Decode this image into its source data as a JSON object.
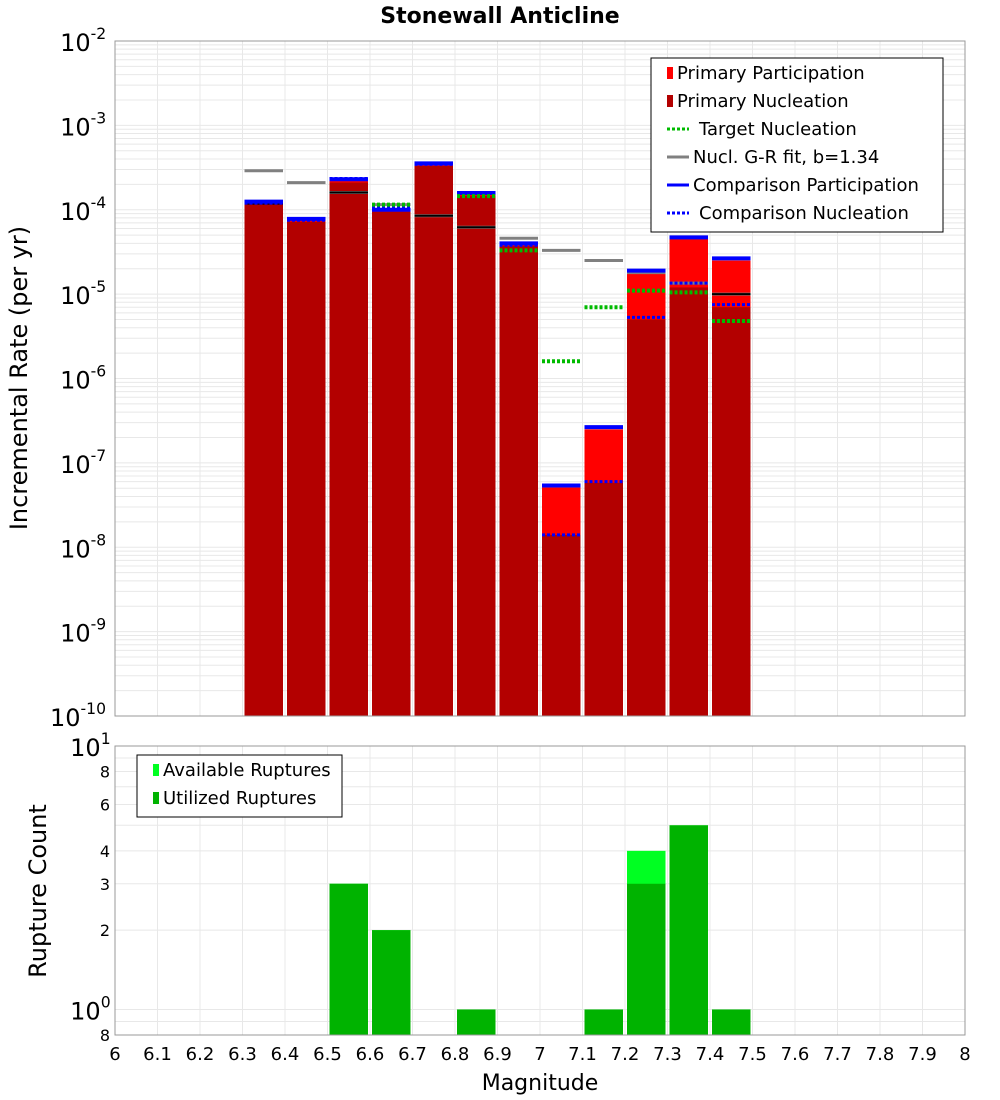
{
  "title": "Stonewall Anticline",
  "xlabel": "Magnitude",
  "colors": {
    "primary_participation": "#ff0000",
    "primary_nucleation": "#b30000",
    "target_nucleation": "#00bb00",
    "gr_fit": "#808080",
    "comparison": "#0000ff",
    "available": "#00ff22",
    "utilized": "#00b300",
    "grid": "#e8e8e8"
  },
  "x_ticks": [
    "6",
    "6.1",
    "6.2",
    "6.3",
    "6.4",
    "6.5",
    "6.6",
    "6.7",
    "6.8",
    "6.9",
    "7",
    "7.1",
    "7.2",
    "7.3",
    "7.4",
    "7.5",
    "7.6",
    "7.7",
    "7.8",
    "7.9",
    "8"
  ],
  "chart_data": [
    {
      "type": "bar",
      "ylabel": "Incremental Rate (per yr)",
      "y_scale": "log",
      "xlim": [
        6.0,
        8.0
      ],
      "ylim": [
        1e-10,
        0.01
      ],
      "y_ticks": [
        {
          "base": "10",
          "exp": "-10"
        },
        {
          "base": "10",
          "exp": "-9"
        },
        {
          "base": "10",
          "exp": "-8"
        },
        {
          "base": "10",
          "exp": "-7"
        },
        {
          "base": "10",
          "exp": "-6"
        },
        {
          "base": "10",
          "exp": "-5"
        },
        {
          "base": "10",
          "exp": "-4"
        },
        {
          "base": "10",
          "exp": "-3"
        },
        {
          "base": "10",
          "exp": "-2"
        }
      ],
      "legend": {
        "placement": "top-right",
        "entries": [
          {
            "label": "Primary Participation",
            "style": "box",
            "color": "#ff0000"
          },
          {
            "label": "Primary Nucleation",
            "style": "box",
            "color": "#b30000"
          },
          {
            "label": "Target Nucleation",
            "style": "dotted",
            "color": "#00bb00"
          },
          {
            "label": "Nucl. G-R fit, b=1.34",
            "style": "solid",
            "color": "#808080"
          },
          {
            "label": "Comparison Participation",
            "style": "solid",
            "color": "#0000ff"
          },
          {
            "label": "Comparison Nucleation",
            "style": "dotted",
            "color": "#0000ff"
          }
        ]
      },
      "magnitudes": [
        6.35,
        6.45,
        6.55,
        6.65,
        6.75,
        6.85,
        6.95,
        7.05,
        7.15,
        7.25,
        7.35,
        7.45
      ],
      "series": [
        {
          "name": "Primary Participation",
          "values": [
            0.00012,
            7.5e-05,
            0.00022,
            9.8e-05,
            0.00034,
            0.00015,
            3.9e-05,
            5.1e-08,
            2.5e-07,
            1.8e-05,
            4.5e-05,
            2.5e-05
          ]
        },
        {
          "name": "Primary Nucleation",
          "values": [
            0.000115,
            7.2e-05,
            0.00021,
            9.5e-05,
            0.00033,
            0.000145,
            3.7e-05,
            1.4e-08,
            5.8e-08,
            5e-06,
            1.2e-05,
            7e-06
          ]
        },
        {
          "name": "Target Nucleation",
          "values": [
            null,
            null,
            null,
            0.000115,
            null,
            0.000145,
            3.3e-05,
            1.6e-06,
            7e-06,
            1.1e-05,
            1.05e-05,
            4.8e-06
          ]
        },
        {
          "name": "Nucl. G-R fit, b=1.34",
          "values": [
            0.00029,
            0.00021,
            0.00016,
            0.000115,
            8.5e-05,
            6.2e-05,
            4.6e-05,
            3.3e-05,
            2.5e-05,
            1.8e-05,
            1.35e-05,
            1e-05
          ]
        },
        {
          "name": "Comparison Participation",
          "values": [
            0.000125,
            7.8e-05,
            0.00023,
            0.0001,
            0.000355,
            0.000158,
            4e-05,
            5.4e-08,
            2.65e-07,
            1.9e-05,
            4.7e-05,
            2.65e-05
          ]
        },
        {
          "name": "Comparison Nucleation",
          "values": [
            0.00012,
            7.5e-05,
            0.000235,
            0.000105,
            0.000345,
            0.00015,
            3.8e-05,
            1.4e-08,
            6e-08,
            5.3e-06,
            1.35e-05,
            7.5e-06
          ]
        }
      ],
      "fit_marks": [
        0.000118,
        null,
        0.00016,
        null,
        8.5e-05,
        6.2e-05,
        null,
        null,
        null,
        null,
        null,
        1e-05
      ]
    },
    {
      "type": "bar",
      "ylabel": "Rupture Count",
      "y_scale": "log",
      "xlim": [
        6.0,
        8.0
      ],
      "ylim": [
        0.8,
        10
      ],
      "y_ticks": [
        {
          "value": 0.8,
          "base": "8",
          "exp": ""
        },
        {
          "value": 1,
          "base": "10",
          "exp": "0"
        },
        {
          "value": 2,
          "base": "2",
          "exp": ""
        },
        {
          "value": 3,
          "base": "3",
          "exp": ""
        },
        {
          "value": 4,
          "base": "4",
          "exp": ""
        },
        {
          "value": 6,
          "base": "6",
          "exp": ""
        },
        {
          "value": 8,
          "base": "8",
          "exp": ""
        },
        {
          "value": 10,
          "base": "10",
          "exp": "1"
        }
      ],
      "legend": {
        "placement": "top-left",
        "entries": [
          {
            "label": "Available Ruptures",
            "style": "box",
            "color": "#00ff22"
          },
          {
            "label": "Utilized Ruptures",
            "style": "box",
            "color": "#00b300"
          }
        ]
      },
      "magnitudes": [
        6.55,
        6.65,
        6.85,
        7.15,
        7.25,
        7.35,
        7.45
      ],
      "series": [
        {
          "name": "Available Ruptures",
          "values": [
            3,
            2,
            1,
            1,
            4,
            5,
            1
          ]
        },
        {
          "name": "Utilized Ruptures",
          "values": [
            3,
            2,
            1,
            1,
            3,
            5,
            1
          ]
        }
      ]
    }
  ]
}
